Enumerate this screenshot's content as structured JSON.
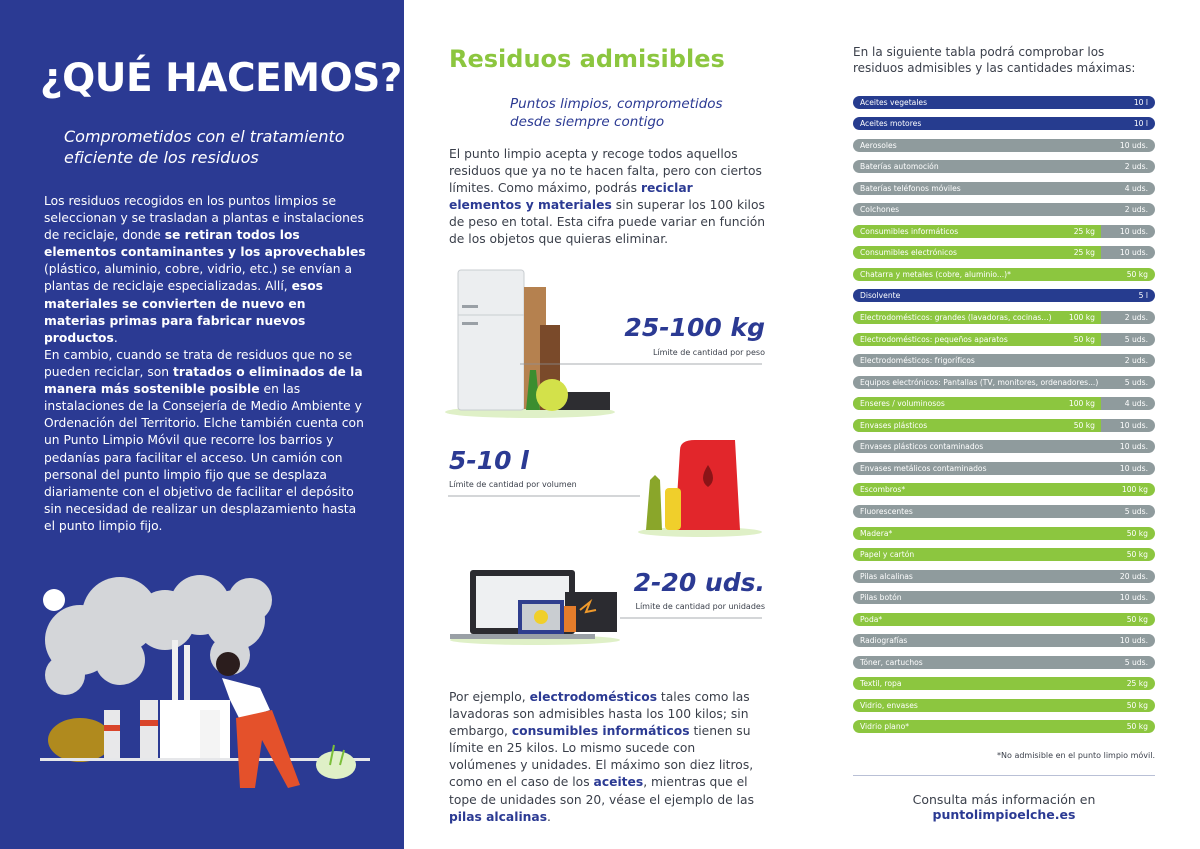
{
  "left": {
    "title": "¿QUÉ HACEMOS?",
    "subtitle": "Comprometidos con el tratamiento eficiente de los residuos",
    "paragraphs": [
      [
        {
          "text": "Los residuos recogidos en los puntos limpios se seleccionan y se trasladan a plantas e instalaciones de reciclaje, donde ",
          "bold": false
        },
        {
          "text": "se retiran todos los elementos contaminantes y los aprovechables",
          "bold": true
        },
        {
          "text": " (plástico, aluminio, cobre, vidrio, etc.) se envían a plantas de reciclaje especializadas. Allí, ",
          "bold": false
        },
        {
          "text": "esos materiales se convierten de nuevo en materias primas para fabricar nuevos productos",
          "bold": true
        },
        {
          "text": ".",
          "bold": false
        }
      ],
      [
        {
          "text": "En cambio, cuando se trata de residuos que no se pueden reciclar, son ",
          "bold": false
        },
        {
          "text": "tratados o eliminados de la manera más sostenible posible",
          "bold": true
        },
        {
          "text": " en las instalaciones de la Consejería de Medio Ambiente y Ordenación del Territorio. Elche también cuenta con un Punto Limpio Móvil que recorre los barrios y pedanías para facilitar el acceso. Un camión con personal del punto limpio fijo que se desplaza diariamente con el objetivo de facilitar el depósito sin necesidad de realizar un desplazamiento hasta el punto limpio fijo.",
          "bold": false
        }
      ]
    ]
  },
  "middle": {
    "title": "Residuos admisibles",
    "subtitle": "Puntos limpios, comprometidos desde siempre contigo",
    "intro": [
      {
        "text": "El punto limpio acepta y recoge todos aquellos residuos que ya no te hacen falta, pero con ciertos límites. Como máximo, podrás ",
        "bold": false
      },
      {
        "text": "reciclar elementos y materiales",
        "bold": true
      },
      {
        "text": " sin superar los 100 kilos de peso en total. Esta cifra puede variar en función de los objetos que quieras eliminar.",
        "bold": false
      }
    ],
    "limits": [
      {
        "amount": "25-100 kg",
        "caption": "Límite de cantidad por peso"
      },
      {
        "amount": "5-10 l",
        "caption": "Límite de cantidad por volumen"
      },
      {
        "amount": "2-20 uds.",
        "caption": "Límite de cantidad por unidades"
      }
    ],
    "example": [
      {
        "text": "Por ejemplo, ",
        "bold": false
      },
      {
        "text": "electrodomésticos",
        "bold": true
      },
      {
        "text": " tales como las lavadoras son admisibles hasta los 100 kilos; sin embargo, ",
        "bold": false
      },
      {
        "text": "consumibles informáticos",
        "bold": true
      },
      {
        "text": " tienen su límite en 25 kilos. Lo mismo sucede con volúmenes y unidades. El máximo son diez litros, como en el caso de los ",
        "bold": false
      },
      {
        "text": "aceites",
        "bold": true
      },
      {
        "text": ", mientras que el tope de unidades son 20, véase el ejemplo de las ",
        "bold": false
      },
      {
        "text": "pilas alcalinas",
        "bold": true
      },
      {
        "text": ".",
        "bold": false
      }
    ]
  },
  "right": {
    "intro": "En la siguiente tabla podrá comprobar los residuos admisibles y las cantidades máximas:",
    "palette": {
      "blue": "#263c8f",
      "gray": "#8f9b9d",
      "green": "#8cc63f"
    },
    "table": {
      "rows": [
        {
          "name": "Aceites vegetales",
          "limit": "10 l",
          "color": "blue"
        },
        {
          "name": "Aceites motores",
          "limit": "10 l",
          "color": "blue"
        },
        {
          "name": "Aerosoles",
          "limit": "10 uds.",
          "color": "gray"
        },
        {
          "name": "Baterías automoción",
          "limit": "2 uds.",
          "color": "gray"
        },
        {
          "name": "Baterías teléfonos móviles",
          "limit": "4 uds.",
          "color": "gray"
        },
        {
          "name": "Colchones",
          "limit": "2 uds.",
          "color": "gray"
        },
        {
          "name": "Consumibles informáticos",
          "split": "25 kg",
          "split_color": "green",
          "limit": "10 uds.",
          "color": "gray"
        },
        {
          "name": "Consumibles electrónicos",
          "split": "25 kg",
          "split_color": "green",
          "limit": "10 uds.",
          "color": "gray"
        },
        {
          "name": "Chatarra y metales (cobre, aluminio...)*",
          "limit": "50 kg",
          "color": "green"
        },
        {
          "name": "Disolvente",
          "limit": "5 l",
          "color": "blue"
        },
        {
          "name": "Electrodomésticos: grandes (lavadoras, cocinas...)",
          "split": "100 kg",
          "split_color": "green",
          "limit": "2 uds.",
          "color": "gray"
        },
        {
          "name": "Electrodomésticos: pequeños aparatos",
          "split": "50 kg",
          "split_color": "green",
          "limit": "5 uds.",
          "color": "gray"
        },
        {
          "name": "Electrodomésticos: frigoríficos",
          "limit": "2 uds.",
          "color": "gray"
        },
        {
          "name": "Equipos electrónicos: Pantallas (TV, monitores, ordenadores...)",
          "limit": "5 uds.",
          "color": "gray"
        },
        {
          "name": "Enseres / voluminosos",
          "split": "100 kg",
          "split_color": "green",
          "limit": "4 uds.",
          "color": "gray"
        },
        {
          "name": "Envases plásticos",
          "split": "50 kg",
          "split_color": "green",
          "limit": "10 uds.",
          "color": "gray"
        },
        {
          "name": "Envases plásticos contaminados",
          "limit": "10 uds.",
          "color": "gray"
        },
        {
          "name": "Envases metálicos contaminados",
          "limit": "10 uds.",
          "color": "gray"
        },
        {
          "name": "Escombros*",
          "limit": "100 kg",
          "color": "green"
        },
        {
          "name": "Fluorescentes",
          "limit": "5 uds.",
          "color": "gray"
        },
        {
          "name": "Madera*",
          "limit": "50 kg",
          "color": "green"
        },
        {
          "name": "Papel y cartón",
          "limit": "50 kg",
          "color": "green"
        },
        {
          "name": "Pilas alcalinas",
          "limit": "20 uds.",
          "color": "gray"
        },
        {
          "name": "Pilas botón",
          "limit": "10 uds.",
          "color": "gray"
        },
        {
          "name": "Poda*",
          "limit": "50 kg",
          "color": "green"
        },
        {
          "name": "Radiografías",
          "limit": "10 uds.",
          "color": "gray"
        },
        {
          "name": "Tóner, cartuchos",
          "limit": "5 uds.",
          "color": "gray"
        },
        {
          "name": "Textil, ropa",
          "limit": "25 kg",
          "color": "green"
        },
        {
          "name": "Vidrio, envases",
          "limit": "50 kg",
          "color": "green"
        },
        {
          "name": "Vidrio plano*",
          "limit": "50 kg",
          "color": "green"
        }
      ]
    },
    "footnote": "*No admisible en el punto limpio móvil.",
    "more_info": "Consulta más información en",
    "link": "puntolimpioelche.es"
  }
}
